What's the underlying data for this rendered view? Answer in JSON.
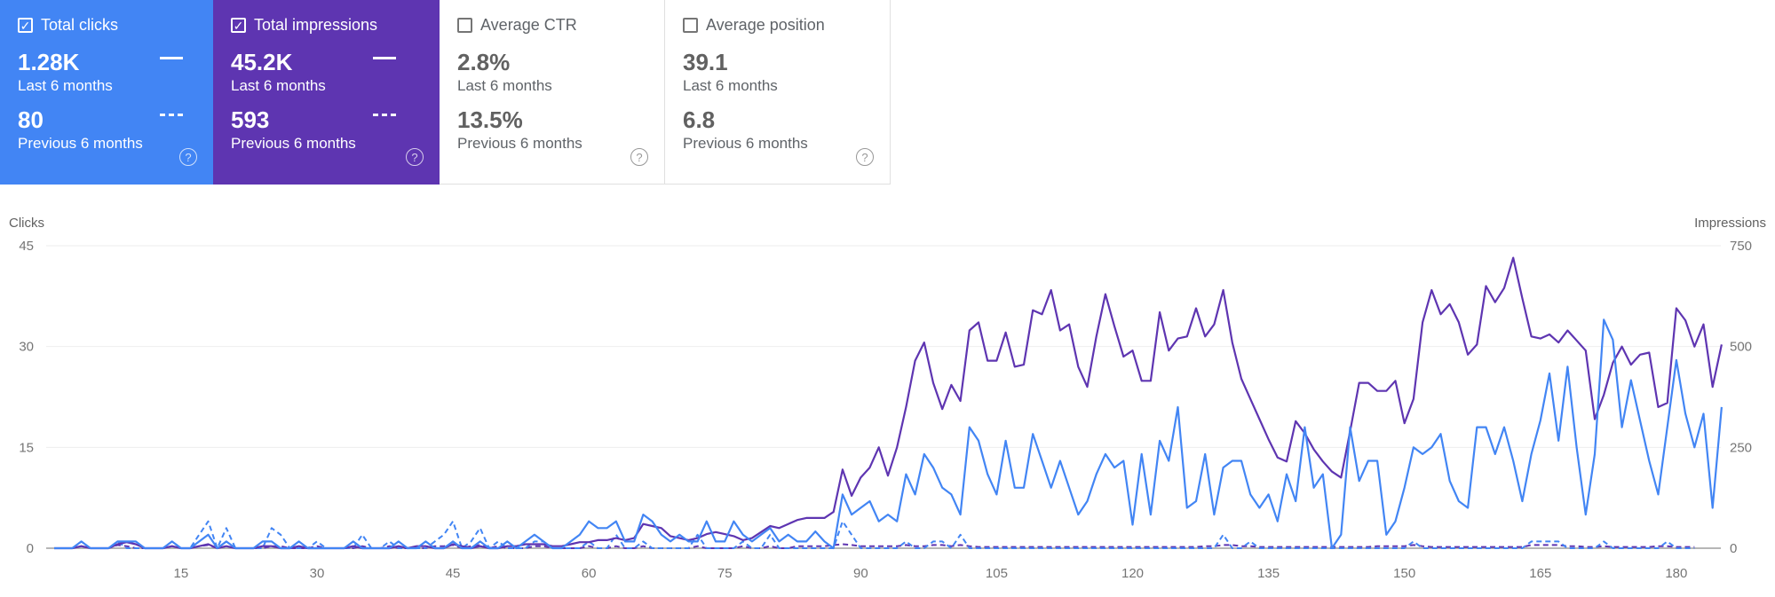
{
  "cards": [
    {
      "title": "Total clicks",
      "checked": true,
      "value": "1.28K",
      "label": "Last 6 months",
      "prev_value": "80",
      "prev_label": "Previous 6 months",
      "color": "#4285f4"
    },
    {
      "title": "Total impressions",
      "checked": true,
      "value": "45.2K",
      "label": "Last 6 months",
      "prev_value": "593",
      "prev_label": "Previous 6 months",
      "color": "#5e35b1"
    },
    {
      "title": "Average CTR",
      "checked": false,
      "value": "2.8%",
      "label": "Last 6 months",
      "prev_value": "13.5%",
      "prev_label": "Previous 6 months"
    },
    {
      "title": "Average position",
      "checked": false,
      "value": "39.1",
      "label": "Last 6 months",
      "prev_value": "6.8",
      "prev_label": "Previous 6 months"
    }
  ],
  "icons": {
    "check": "✓",
    "help": "?"
  },
  "chart_data": {
    "type": "line",
    "ylabel": "Clicks",
    "y2label": "Impressions",
    "ylim": [
      0,
      45
    ],
    "y2lim": [
      0,
      750
    ],
    "yticks": [
      "0",
      "15",
      "30",
      "45"
    ],
    "y2ticks": [
      "0",
      "250",
      "500",
      "750"
    ],
    "xticks": [
      "15",
      "30",
      "45",
      "60",
      "75",
      "90",
      "105",
      "120",
      "135",
      "150",
      "165",
      "180"
    ],
    "xtick_values": [
      15,
      30,
      45,
      60,
      75,
      90,
      105,
      120,
      135,
      150,
      165,
      180
    ],
    "grid": true,
    "series": [
      {
        "name": "Clicks (last 6 months)",
        "axis": "left",
        "style": "solid",
        "color": "#4285f4",
        "values": [
          0,
          0,
          0,
          1,
          0,
          0,
          0,
          1,
          1,
          1,
          0,
          0,
          0,
          1,
          0,
          0,
          1,
          2,
          0,
          1,
          0,
          0,
          0,
          1,
          1,
          0,
          0,
          1,
          0,
          0,
          0,
          0,
          0,
          1,
          0,
          0,
          0,
          0,
          1,
          0,
          0,
          1,
          0,
          0,
          1,
          0,
          0,
          1,
          0,
          0,
          1,
          0,
          1,
          2,
          1,
          0,
          0,
          1,
          2,
          4,
          3,
          3,
          4,
          1,
          1,
          5,
          4,
          2,
          1,
          2,
          1,
          1,
          4,
          1,
          1,
          4,
          2,
          1,
          2,
          3,
          1,
          2,
          1,
          1,
          2.5,
          1,
          0,
          8,
          5,
          6,
          7,
          4,
          5,
          4,
          11,
          8,
          14,
          12,
          9,
          8,
          5,
          18,
          16,
          11,
          8,
          16,
          9,
          9,
          17,
          13,
          9,
          13,
          9,
          5,
          7,
          11,
          14,
          12,
          13,
          3.5,
          14,
          5,
          16,
          13,
          21,
          6,
          7,
          14,
          5,
          12,
          13,
          13,
          8,
          6,
          8,
          4,
          11,
          7,
          18,
          9,
          11,
          0,
          2,
          18,
          10,
          13,
          13,
          2,
          4,
          9,
          15,
          14,
          15,
          17,
          10,
          7,
          6,
          18,
          18,
          14,
          18,
          13,
          7,
          14,
          19,
          26,
          16,
          27,
          15,
          5,
          14,
          34,
          31,
          18,
          25,
          19,
          13,
          8,
          18,
          28,
          20,
          15,
          20,
          6,
          21
        ]
      },
      {
        "name": "Impressions (last 6 months)",
        "axis": "right",
        "style": "solid",
        "color": "#5e35b1",
        "values": [
          0,
          0,
          0,
          5,
          0,
          0,
          0,
          10,
          15,
          10,
          0,
          0,
          0,
          5,
          0,
          0,
          5,
          10,
          0,
          5,
          0,
          0,
          0,
          5,
          5,
          0,
          0,
          5,
          0,
          0,
          0,
          0,
          0,
          5,
          0,
          0,
          0,
          0,
          5,
          0,
          5,
          5,
          0,
          0,
          10,
          5,
          0,
          5,
          0,
          0,
          5,
          5,
          10,
          10,
          10,
          5,
          5,
          10,
          15,
          15,
          20,
          20,
          25,
          20,
          25,
          60,
          55,
          50,
          30,
          25,
          20,
          25,
          35,
          40,
          35,
          30,
          20,
          25,
          40,
          55,
          50,
          60,
          70,
          75,
          75,
          75,
          90,
          195,
          130,
          175,
          200,
          250,
          180,
          250,
          350,
          465,
          510,
          410,
          345,
          405,
          365,
          540,
          560,
          465,
          465,
          535,
          450,
          455,
          590,
          580,
          640,
          540,
          555,
          450,
          400,
          525,
          630,
          550,
          475,
          490,
          415,
          415,
          585,
          490,
          520,
          525,
          595,
          525,
          555,
          640,
          510,
          420,
          370,
          320,
          270,
          225,
          215,
          315,
          285,
          245,
          215,
          190,
          175,
          290,
          410,
          410,
          390,
          390,
          415,
          310,
          370,
          560,
          640,
          580,
          605,
          560,
          480,
          505,
          650,
          610,
          645,
          720,
          620,
          525,
          520,
          530,
          510,
          540,
          515,
          490,
          320,
          380,
          460,
          500,
          455,
          480,
          485,
          350,
          360,
          595,
          565,
          500,
          555,
          400,
          505
        ]
      },
      {
        "name": "Clicks (previous 6 months)",
        "axis": "left",
        "style": "dashed",
        "color": "#4285f4",
        "values": [
          0,
          0,
          0,
          1,
          0,
          0,
          0,
          1,
          0,
          0,
          0,
          0,
          0,
          1,
          0,
          0,
          2,
          4,
          0,
          3,
          0,
          0,
          0,
          0,
          3,
          2,
          0,
          0,
          0,
          1,
          0,
          0,
          0,
          0,
          2,
          0,
          0,
          1,
          0,
          0,
          0,
          0,
          1,
          2,
          4,
          0,
          1,
          3,
          0,
          1,
          0,
          0,
          0,
          1,
          1,
          0,
          0,
          0,
          0,
          1,
          0,
          0,
          2,
          0,
          0,
          1,
          0,
          0,
          0,
          0,
          0,
          2,
          0,
          0,
          0,
          0,
          1,
          0,
          0,
          2,
          0,
          0,
          0,
          0,
          0,
          0,
          0,
          4,
          2,
          0,
          0,
          0,
          0,
          0,
          1,
          0,
          0,
          1,
          1,
          0,
          2,
          0,
          0,
          0,
          0,
          0,
          0,
          0,
          0,
          0,
          0,
          0,
          0,
          0,
          0,
          0,
          0,
          0,
          0,
          0,
          0,
          0,
          0,
          0,
          0,
          0,
          0,
          0,
          0,
          2,
          0,
          0,
          1,
          0,
          0,
          0,
          0,
          0,
          0,
          0,
          0,
          0,
          0,
          0,
          0,
          0,
          0,
          0,
          0,
          0,
          1,
          0,
          0,
          0,
          0,
          0,
          0,
          0,
          0,
          0,
          0,
          0,
          0,
          1,
          1,
          1,
          1,
          0,
          0,
          0,
          0,
          1,
          0,
          0,
          0,
          0,
          0,
          0,
          1,
          0,
          0,
          0
        ]
      },
      {
        "name": "Impressions (previous 6 months)",
        "axis": "right",
        "style": "dashed",
        "color": "#5e35b1",
        "values": [
          0,
          0,
          0,
          5,
          0,
          0,
          0,
          8,
          5,
          0,
          0,
          0,
          0,
          5,
          0,
          0,
          5,
          8,
          0,
          5,
          0,
          0,
          0,
          0,
          5,
          5,
          0,
          0,
          0,
          5,
          0,
          0,
          0,
          0,
          5,
          0,
          0,
          5,
          0,
          0,
          0,
          0,
          5,
          5,
          8,
          0,
          5,
          8,
          0,
          5,
          0,
          0,
          0,
          5,
          5,
          0,
          0,
          0,
          0,
          5,
          0,
          0,
          5,
          0,
          0,
          5,
          0,
          0,
          0,
          0,
          0,
          5,
          0,
          0,
          0,
          0,
          5,
          0,
          0,
          5,
          0,
          0,
          5,
          5,
          5,
          5,
          8,
          10,
          8,
          5,
          5,
          5,
          5,
          5,
          8,
          5,
          5,
          8,
          8,
          5,
          8,
          5,
          3,
          3,
          3,
          3,
          3,
          3,
          3,
          3,
          3,
          3,
          3,
          3,
          3,
          3,
          3,
          3,
          3,
          3,
          3,
          3,
          3,
          3,
          3,
          3,
          3,
          5,
          5,
          8,
          8,
          5,
          5,
          3,
          3,
          3,
          3,
          3,
          3,
          3,
          3,
          3,
          3,
          3,
          3,
          3,
          5,
          5,
          5,
          5,
          8,
          5,
          3,
          3,
          3,
          3,
          3,
          3,
          3,
          3,
          3,
          3,
          3,
          8,
          8,
          8,
          8,
          5,
          5,
          3,
          3,
          5,
          3,
          3,
          3,
          3,
          3,
          5,
          5,
          3,
          3,
          3
        ]
      }
    ]
  }
}
